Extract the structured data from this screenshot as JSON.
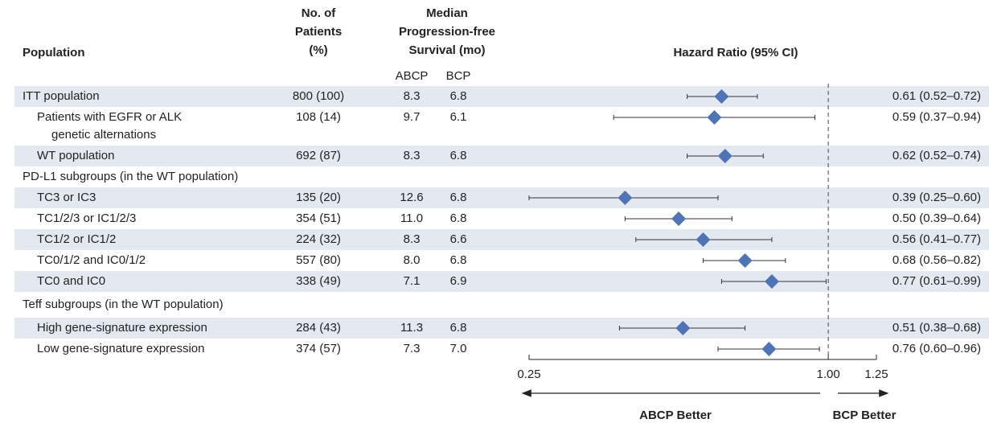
{
  "chart_data": {
    "type": "forest",
    "headers": {
      "population": "Population",
      "patients": [
        "No. of",
        "Patients",
        "(%)"
      ],
      "pfs": [
        "Median",
        "Progression-free",
        "Survival (mo)"
      ],
      "hr": "Hazard Ratio (95% CI)",
      "abcp": "ABCP",
      "bcp": "BCP"
    },
    "rows": [
      {
        "label": "ITT population",
        "indent": 0,
        "patients": "800 (100)",
        "abcp": "8.3",
        "bcp": "6.8",
        "hr": 0.61,
        "ci": [
          0.52,
          0.72
        ],
        "hr_label": "0.61 (0.52–0.72)"
      },
      {
        "label": [
          "Patients with EGFR or ALK",
          "genetic alternations"
        ],
        "indent": 1,
        "patients": "108 (14)",
        "abcp": "9.7",
        "bcp": "6.1",
        "hr": 0.59,
        "ci": [
          0.37,
          0.94
        ],
        "hr_label": "0.59 (0.37–0.94)"
      },
      {
        "label": "WT population",
        "indent": 1,
        "patients": "692 (87)",
        "abcp": "8.3",
        "bcp": "6.8",
        "hr": 0.62,
        "ci": [
          0.52,
          0.74
        ],
        "hr_label": "0.62 (0.52–0.74)"
      },
      {
        "label": "PD-L1 subgroups (in the WT population)",
        "indent": 0
      },
      {
        "label": "TC3 or IC3",
        "indent": 1,
        "patients": "135 (20)",
        "abcp": "12.6",
        "bcp": "6.8",
        "hr": 0.39,
        "ci": [
          0.25,
          0.6
        ],
        "hr_label": "0.39 (0.25–0.60)"
      },
      {
        "label": "TC1/2/3 or IC1/2/3",
        "indent": 1,
        "patients": "354 (51)",
        "abcp": "11.0",
        "bcp": "6.8",
        "hr": 0.5,
        "ci": [
          0.39,
          0.64
        ],
        "hr_label": "0.50 (0.39–0.64)"
      },
      {
        "label": "TC1/2 or IC1/2",
        "indent": 1,
        "patients": "224 (32)",
        "abcp": "8.3",
        "bcp": "6.6",
        "hr": 0.56,
        "ci": [
          0.41,
          0.77
        ],
        "hr_label": "0.56 (0.41–0.77)"
      },
      {
        "label": "TC0/1/2 and IC0/1/2",
        "indent": 1,
        "patients": "557 (80)",
        "abcp": "8.0",
        "bcp": "6.8",
        "hr": 0.68,
        "ci": [
          0.56,
          0.82
        ],
        "hr_label": "0.68 (0.56–0.82)"
      },
      {
        "label": "TC0 and IC0",
        "indent": 1,
        "patients": "338 (49)",
        "abcp": "7.1",
        "bcp": "6.9",
        "hr": 0.77,
        "ci": [
          0.61,
          0.99
        ],
        "hr_label": "0.77 (0.61–0.99)"
      },
      {
        "label": "Teff subgroups (in the WT population)",
        "indent": 0
      },
      {
        "label": "High gene-signature expression",
        "indent": 1,
        "patients": "284 (43)",
        "abcp": "11.3",
        "bcp": "6.8",
        "hr": 0.51,
        "ci": [
          0.38,
          0.68
        ],
        "hr_label": "0.51 (0.38–0.68)"
      },
      {
        "label": "Low gene-signature expression",
        "indent": 1,
        "patients": "374 (57)",
        "abcp": "7.3",
        "bcp": "7.0",
        "hr": 0.76,
        "ci": [
          0.6,
          0.96
        ],
        "hr_label": "0.76 (0.60–0.96)"
      }
    ],
    "xlim": [
      0.25,
      1.25
    ],
    "xticks": [
      0.25,
      {
        "value": 1,
        "label": "1.00"
      },
      1.25
    ],
    "log_scale": true,
    "reference": 1,
    "left_label": "ABCP Better",
    "right_label": "BCP Better",
    "color": "#4f74b6",
    "shade": "#e4e9f1"
  }
}
